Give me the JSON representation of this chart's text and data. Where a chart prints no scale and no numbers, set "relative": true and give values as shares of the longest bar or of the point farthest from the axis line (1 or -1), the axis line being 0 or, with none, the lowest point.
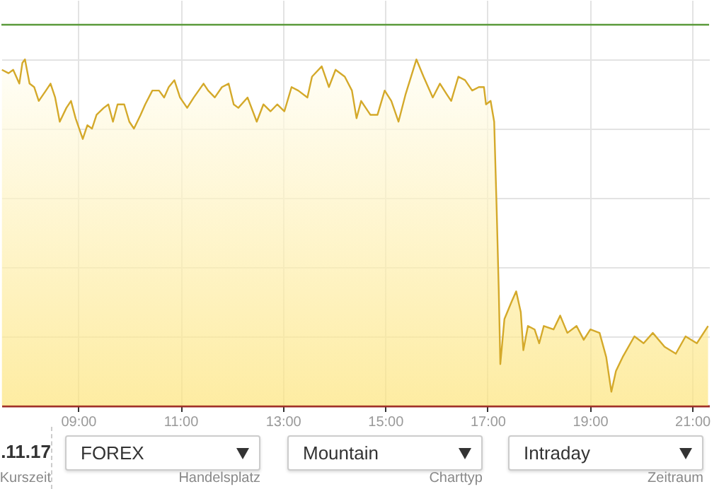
{
  "chart_data": {
    "type": "area",
    "relative": true,
    "x": [
      7.51,
      7.64,
      7.73,
      7.85,
      7.91,
      7.96,
      8.05,
      8.14,
      8.23,
      8.37,
      8.46,
      8.55,
      8.64,
      8.77,
      8.86,
      8.95,
      9.09,
      9.18,
      9.27,
      9.36,
      9.5,
      9.59,
      9.68,
      9.77,
      9.9,
      10.0,
      10.09,
      10.22,
      10.31,
      10.45,
      10.58,
      10.68,
      10.77,
      10.88,
      10.99,
      11.13,
      11.26,
      11.45,
      11.54,
      11.67,
      11.81,
      11.94,
      12.04,
      12.13,
      12.31,
      12.49,
      12.62,
      12.76,
      12.89,
      13.03,
      13.17,
      13.3,
      13.48,
      13.57,
      13.76,
      13.9,
      14.03,
      14.21,
      14.35,
      14.44,
      14.53,
      14.71,
      14.85,
      14.99,
      15.12,
      15.26,
      15.4,
      15.61,
      15.75,
      15.93,
      16.07,
      16.2,
      16.29,
      16.43,
      16.56,
      16.7,
      16.83,
      16.93,
      16.97,
      17.06,
      17.13,
      17.18,
      17.22,
      17.25,
      17.33,
      17.47,
      17.56,
      17.65,
      17.7,
      17.79,
      17.92,
      18.01,
      18.1,
      18.29,
      18.42,
      18.56,
      18.74,
      18.88,
      19.01,
      19.19,
      19.32,
      19.42,
      19.51,
      19.64,
      19.87,
      20.05,
      20.23,
      20.46,
      20.68,
      20.87,
      21.09,
      21.31
    ],
    "series": [
      {
        "color": "#d4a92a",
        "values": [
          0.97,
          0.96,
          0.97,
          0.93,
          0.99,
          1.0,
          0.93,
          0.92,
          0.88,
          0.91,
          0.93,
          0.89,
          0.82,
          0.86,
          0.88,
          0.83,
          0.77,
          0.81,
          0.8,
          0.84,
          0.86,
          0.87,
          0.82,
          0.87,
          0.87,
          0.82,
          0.8,
          0.84,
          0.87,
          0.91,
          0.91,
          0.89,
          0.92,
          0.94,
          0.89,
          0.86,
          0.89,
          0.93,
          0.91,
          0.89,
          0.92,
          0.93,
          0.87,
          0.86,
          0.89,
          0.82,
          0.87,
          0.85,
          0.87,
          0.85,
          0.92,
          0.91,
          0.89,
          0.95,
          0.98,
          0.92,
          0.97,
          0.95,
          0.91,
          0.83,
          0.88,
          0.84,
          0.84,
          0.91,
          0.88,
          0.82,
          0.9,
          1.0,
          0.95,
          0.89,
          0.93,
          0.9,
          0.88,
          0.95,
          0.94,
          0.91,
          0.92,
          0.92,
          0.87,
          0.88,
          0.82,
          0.56,
          0.33,
          0.12,
          0.25,
          0.3,
          0.33,
          0.27,
          0.16,
          0.23,
          0.22,
          0.18,
          0.23,
          0.22,
          0.26,
          0.21,
          0.23,
          0.19,
          0.22,
          0.21,
          0.14,
          0.04,
          0.1,
          0.14,
          0.2,
          0.18,
          0.21,
          0.17,
          0.15,
          0.2,
          0.18,
          0.23
        ]
      }
    ],
    "xlim": [
      7.5,
      21.33
    ],
    "xticks": [
      {
        "value": 9,
        "label": "09:00"
      },
      {
        "value": 11,
        "label": "11:00"
      },
      {
        "value": 13,
        "label": "13:00"
      },
      {
        "value": 15,
        "label": "15:00"
      },
      {
        "value": 17,
        "label": "17:00"
      },
      {
        "value": 19,
        "label": "19:00"
      },
      {
        "value": 21,
        "label": "21:00"
      }
    ],
    "ref_lines": [
      {
        "axis": "y",
        "value": 1.1,
        "color": "#5a9a3a"
      }
    ],
    "grid": true,
    "annotations": [
      ".11.17",
      "Kurszeit",
      "FOREX",
      "Handelsplatz",
      "Mountain",
      "Charttyp",
      "Intraday",
      "Zeitraum"
    ]
  }
}
